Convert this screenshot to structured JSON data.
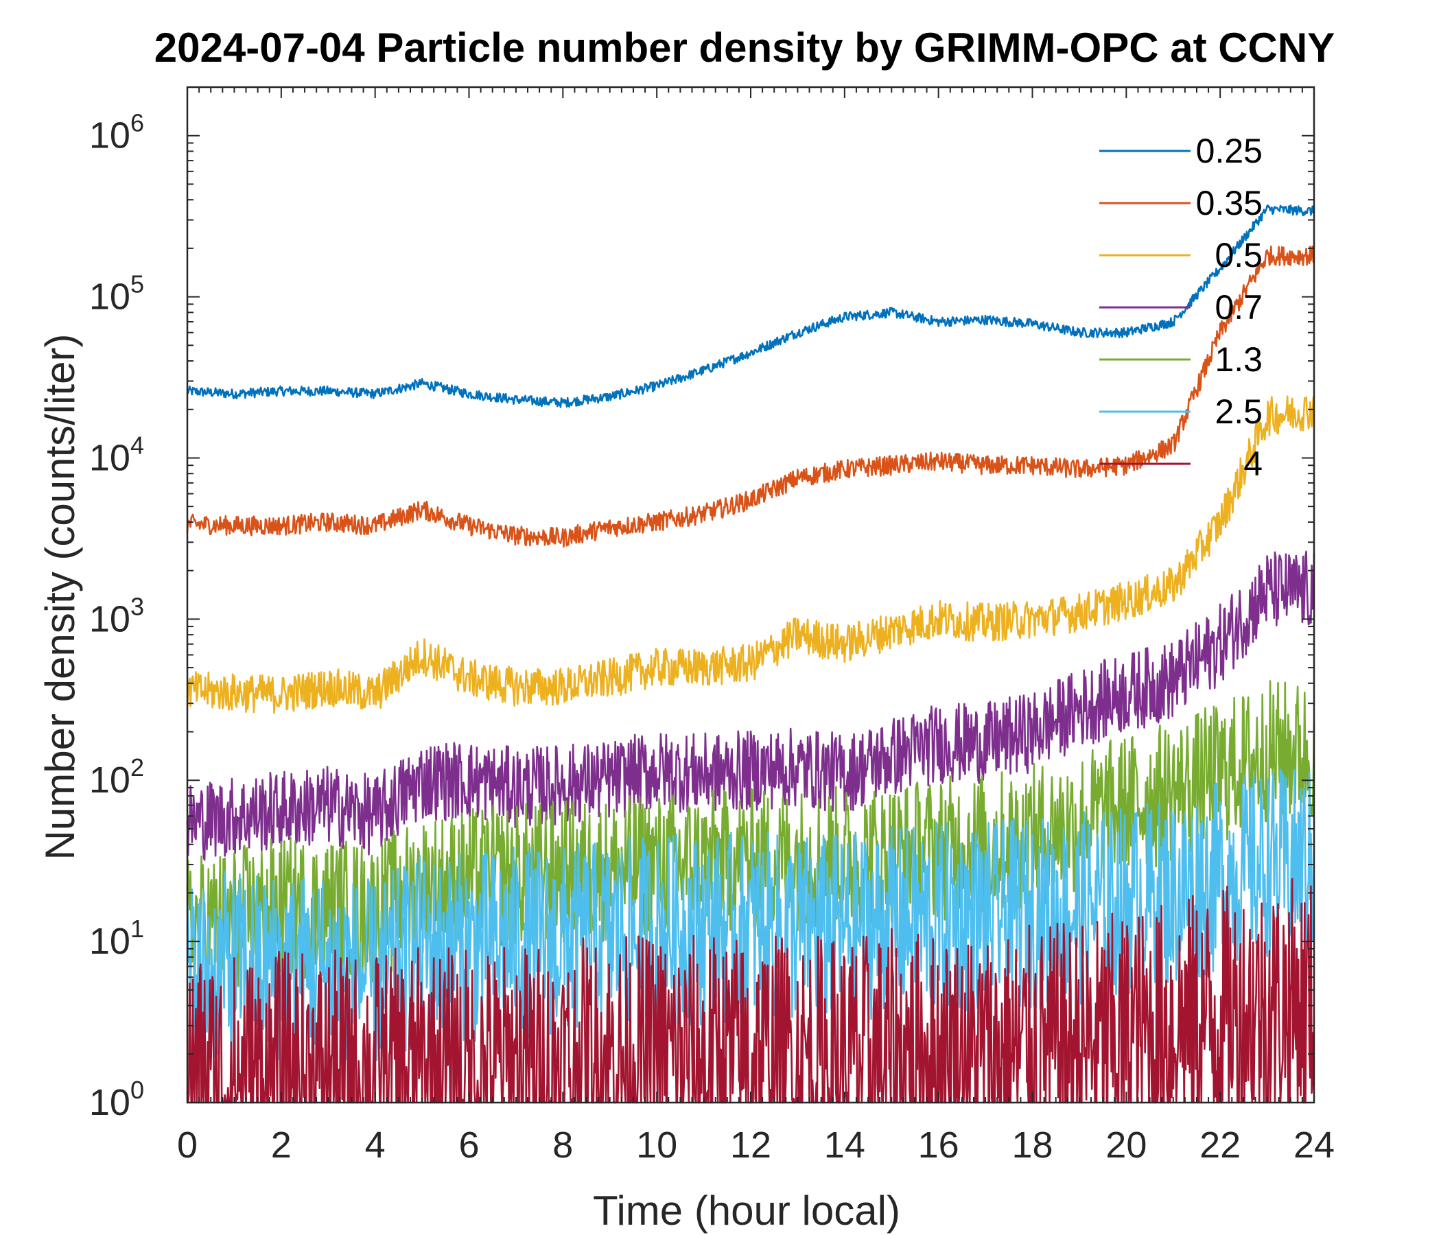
{
  "chart_data": {
    "type": "line",
    "title": "2024-07-04 Particle number density by GRIMM-OPC at CCNY",
    "xlabel": "Time (hour local)",
    "ylabel": "Number density (counts/liter)",
    "xlim": [
      0,
      24
    ],
    "ylim": [
      1,
      2000000
    ],
    "yscale": "log",
    "grid": false,
    "legend_position": "top-right",
    "xticks": [
      "0",
      "2",
      "4",
      "6",
      "8",
      "10",
      "12",
      "14",
      "16",
      "18",
      "20",
      "22",
      "24"
    ],
    "yticks": [
      {
        "base": "10",
        "exp": "0"
      },
      {
        "base": "10",
        "exp": "1"
      },
      {
        "base": "10",
        "exp": "2"
      },
      {
        "base": "10",
        "exp": "3"
      },
      {
        "base": "10",
        "exp": "4"
      },
      {
        "base": "10",
        "exp": "5"
      },
      {
        "base": "10",
        "exp": "6"
      }
    ],
    "x": [
      0,
      1,
      2,
      3,
      4,
      5,
      6,
      7,
      8,
      9,
      10,
      11,
      12,
      13,
      14,
      15,
      16,
      17,
      18,
      19,
      20,
      21,
      22,
      23,
      24
    ],
    "series": [
      {
        "name": "0.25",
        "color": "#0072BD",
        "noise": 0.03,
        "values": [
          26000,
          25000,
          26000,
          26000,
          25000,
          29000,
          25000,
          23000,
          22000,
          24000,
          28000,
          35000,
          45000,
          60000,
          75000,
          80000,
          70000,
          72000,
          68000,
          60000,
          60000,
          70000,
          150000,
          350000,
          340000
        ]
      },
      {
        "name": "0.35",
        "color": "#D95319",
        "noise": 0.06,
        "values": [
          3900,
          3800,
          3800,
          4000,
          3800,
          4800,
          3800,
          3300,
          3200,
          3700,
          4000,
          4500,
          5500,
          7500,
          8500,
          9000,
          9500,
          9000,
          9000,
          8500,
          9000,
          12000,
          60000,
          180000,
          180000
        ]
      },
      {
        "name": "0.5",
        "color": "#EDB120",
        "noise": 0.12,
        "values": [
          360,
          350,
          340,
          380,
          340,
          600,
          430,
          380,
          380,
          430,
          500,
          500,
          530,
          800,
          700,
          850,
          1000,
          950,
          1000,
          1100,
          1300,
          1600,
          4000,
          18000,
          20000
        ]
      },
      {
        "name": "0.7",
        "color": "#7E2F8E",
        "noise": 0.25,
        "values": [
          55,
          60,
          65,
          70,
          60,
          100,
          100,
          90,
          95,
          100,
          115,
          110,
          115,
          120,
          110,
          140,
          170,
          170,
          200,
          280,
          350,
          420,
          700,
          1500,
          1500
        ]
      },
      {
        "name": "1.3",
        "color": "#77AC30",
        "noise": 0.45,
        "values": [
          12,
          14,
          16,
          16,
          15,
          22,
          24,
          26,
          27,
          28,
          30,
          31,
          32,
          33,
          33,
          35,
          38,
          40,
          45,
          55,
          70,
          85,
          110,
          150,
          150
        ]
      },
      {
        "name": "2.5",
        "color": "#4DBEEE",
        "noise": 0.6,
        "values": [
          6,
          7,
          7,
          7,
          6,
          9,
          9,
          10,
          10,
          11,
          12,
          12,
          12,
          12,
          12,
          13,
          14,
          14,
          15,
          16,
          18,
          20,
          25,
          30,
          30
        ]
      },
      {
        "name": "4",
        "color": "#A2142F",
        "noise": 0.8,
        "values": [
          1.4,
          1.4,
          1.4,
          1.4,
          1.4,
          1.5,
          1.5,
          1.6,
          1.6,
          1.8,
          1.8,
          1.8,
          1.8,
          1.8,
          1.8,
          1.9,
          1.9,
          1.9,
          2,
          2.2,
          2.5,
          3,
          3.5,
          4,
          4
        ]
      }
    ]
  }
}
